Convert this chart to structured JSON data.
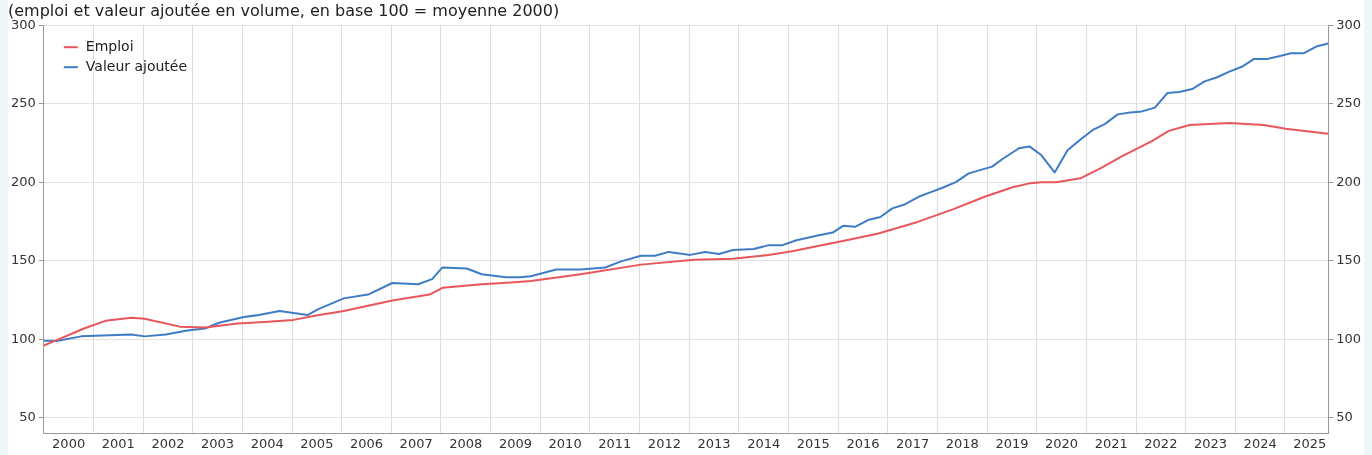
{
  "chart_data": {
    "type": "line",
    "subtitle": "(emploi et valeur ajoutée en volume, en base 100 = moyenne 2000)",
    "xlim": [
      2000,
      2025.87
    ],
    "xticks": [
      {
        "value": 2000.5,
        "label": "2000"
      },
      {
        "value": 2001,
        "label": null
      },
      {
        "value": 2001.5,
        "label": "2001"
      },
      {
        "value": 2002,
        "label": null
      },
      {
        "value": 2002.5,
        "label": "2002"
      },
      {
        "value": 2003,
        "label": null
      },
      {
        "value": 2003.5,
        "label": "2003"
      },
      {
        "value": 2004,
        "label": null
      },
      {
        "value": 2004.5,
        "label": "2004"
      },
      {
        "value": 2005,
        "label": null
      },
      {
        "value": 2005.5,
        "label": "2005"
      },
      {
        "value": 2006,
        "label": null
      },
      {
        "value": 2006.5,
        "label": "2006"
      },
      {
        "value": 2007,
        "label": null
      },
      {
        "value": 2007.5,
        "label": "2007"
      },
      {
        "value": 2008,
        "label": null
      },
      {
        "value": 2008.5,
        "label": "2008"
      },
      {
        "value": 2009,
        "label": null
      },
      {
        "value": 2009.5,
        "label": "2009"
      },
      {
        "value": 2010,
        "label": null
      },
      {
        "value": 2010.5,
        "label": "2010"
      },
      {
        "value": 2011,
        "label": null
      },
      {
        "value": 2011.5,
        "label": "2011"
      },
      {
        "value": 2012,
        "label": null
      },
      {
        "value": 2012.5,
        "label": "2012"
      },
      {
        "value": 2013,
        "label": null
      },
      {
        "value": 2013.5,
        "label": "2013"
      },
      {
        "value": 2014,
        "label": null
      },
      {
        "value": 2014.5,
        "label": "2014"
      },
      {
        "value": 2015,
        "label": null
      },
      {
        "value": 2015.5,
        "label": "2015"
      },
      {
        "value": 2016,
        "label": null
      },
      {
        "value": 2016.5,
        "label": "2016"
      },
      {
        "value": 2017,
        "label": null
      },
      {
        "value": 2017.5,
        "label": "2017"
      },
      {
        "value": 2018,
        "label": null
      },
      {
        "value": 2018.5,
        "label": "2018"
      },
      {
        "value": 2019,
        "label": null
      },
      {
        "value": 2019.5,
        "label": "2019"
      },
      {
        "value": 2020,
        "label": null
      },
      {
        "value": 2020.5,
        "label": "2020"
      },
      {
        "value": 2021,
        "label": null
      },
      {
        "value": 2021.5,
        "label": "2021"
      },
      {
        "value": 2022,
        "label": null
      },
      {
        "value": 2022.5,
        "label": "2022"
      },
      {
        "value": 2023,
        "label": null
      },
      {
        "value": 2023.5,
        "label": "2023"
      },
      {
        "value": 2024,
        "label": null
      },
      {
        "value": 2024.5,
        "label": "2024"
      },
      {
        "value": 2025,
        "label": null
      },
      {
        "value": 2025.5,
        "label": "2025"
      }
    ],
    "ylim": [
      40,
      300
    ],
    "yticks": [
      50,
      100,
      150,
      200,
      250,
      300
    ],
    "y2lim": [
      40,
      300
    ],
    "y2ticks": [
      50,
      100,
      150,
      200,
      250,
      300
    ],
    "grid": true,
    "legend": "top left",
    "marker": "none",
    "line_style": "solid",
    "series": [
      {
        "name": "Emploi",
        "color": "#e8555a",
        "x": [
          2000,
          2000.26,
          2000.81,
          2001.24,
          2001.76,
          2002.03,
          2002.74,
          2003.25,
          2003.9,
          2004.45,
          2005.03,
          2005.46,
          2006.04,
          2007.02,
          2007.77,
          2008.03,
          2008.82,
          2009.25,
          2009.81,
          2010.11,
          2010.81,
          2012.03,
          2013.1,
          2013.88,
          2014.6,
          2015.1,
          2015.59,
          2016.17,
          2016.81,
          2017.6,
          2018.31,
          2018.95,
          2019.53,
          2019.87,
          2020.09,
          2020.39,
          2020.88,
          2021.31,
          2021.73,
          2022.31,
          2022.66,
          2023.08,
          2023.88,
          2024.58,
          2025.01,
          2025.87
        ],
        "values": [
          96,
          99.4,
          106.8,
          111.7,
          113.6,
          113,
          108,
          107.4,
          110,
          111,
          112.3,
          115,
          118,
          124.7,
          128.4,
          132.7,
          135,
          135.8,
          137,
          138.3,
          141.4,
          147.5,
          150.6,
          151.2,
          153.7,
          156.2,
          159.3,
          163,
          167.3,
          174.7,
          182.7,
          190.7,
          196.9,
          199.4,
          200,
          200,
          202.5,
          209.3,
          216.7,
          226,
          232.7,
          236.4,
          237.7,
          236.4,
          234,
          230.9
        ]
      },
      {
        "name": "Valeur ajoutée",
        "color": "#3f7cc4",
        "x": [
          2000,
          2000.26,
          2000.75,
          2001.18,
          2001.76,
          2002.03,
          2002.46,
          2002.89,
          2003.25,
          2003.53,
          2004.03,
          2004.33,
          2004.75,
          2005.31,
          2005.52,
          2006.04,
          2006.53,
          2007.02,
          2007.54,
          2007.82,
          2008.03,
          2008.52,
          2008.82,
          2009.31,
          2009.59,
          2009.81,
          2010.32,
          2010.81,
          2011.31,
          2011.61,
          2012.03,
          2012.31,
          2012.59,
          2013.02,
          2013.32,
          2013.6,
          2013.88,
          2014.3,
          2014.6,
          2014.88,
          2015.16,
          2015.59,
          2015.89,
          2016.1,
          2016.34,
          2016.6,
          2016.85,
          2017.09,
          2017.34,
          2017.62,
          2017.88,
          2018.09,
          2018.37,
          2018.63,
          2019.1,
          2019.31,
          2019.64,
          2019.85,
          2020.09,
          2020.36,
          2020.62,
          2020.88,
          2021.13,
          2021.37,
          2021.63,
          2021.88,
          2022.12,
          2022.38,
          2022.63,
          2022.87,
          2023.13,
          2023.38,
          2023.62,
          2023.88,
          2024.13,
          2024.37,
          2024.63,
          2024.88,
          2025.12,
          2025.37,
          2025.63,
          2025.87
        ],
        "values": [
          99,
          98.8,
          101.8,
          102.4,
          103,
          101.8,
          103,
          105.5,
          106.8,
          110.5,
          114.2,
          115.4,
          117.9,
          115.4,
          119,
          126,
          128.4,
          135.8,
          135,
          138.3,
          145.7,
          145,
          141.4,
          139.5,
          139.5,
          140.1,
          144.4,
          144.4,
          145.7,
          149.4,
          153.1,
          153.1,
          155.6,
          153.7,
          155.6,
          154.3,
          156.8,
          157.4,
          159.9,
          159.9,
          163,
          166,
          167.9,
          172.2,
          171.6,
          175.9,
          177.8,
          183.3,
          185.8,
          190.7,
          193.8,
          196.3,
          200,
          205.6,
          209.9,
          214.8,
          221.6,
          222.8,
          217.3,
          206.2,
          220.4,
          227.2,
          233.3,
          237,
          243.2,
          244.4,
          245.1,
          247.5,
          256.8,
          257.4,
          259.3,
          264.2,
          266.7,
          270.4,
          273.5,
          278.4,
          278.4,
          280.2,
          282.1,
          282.1,
          286.4,
          288.3
        ]
      }
    ]
  }
}
